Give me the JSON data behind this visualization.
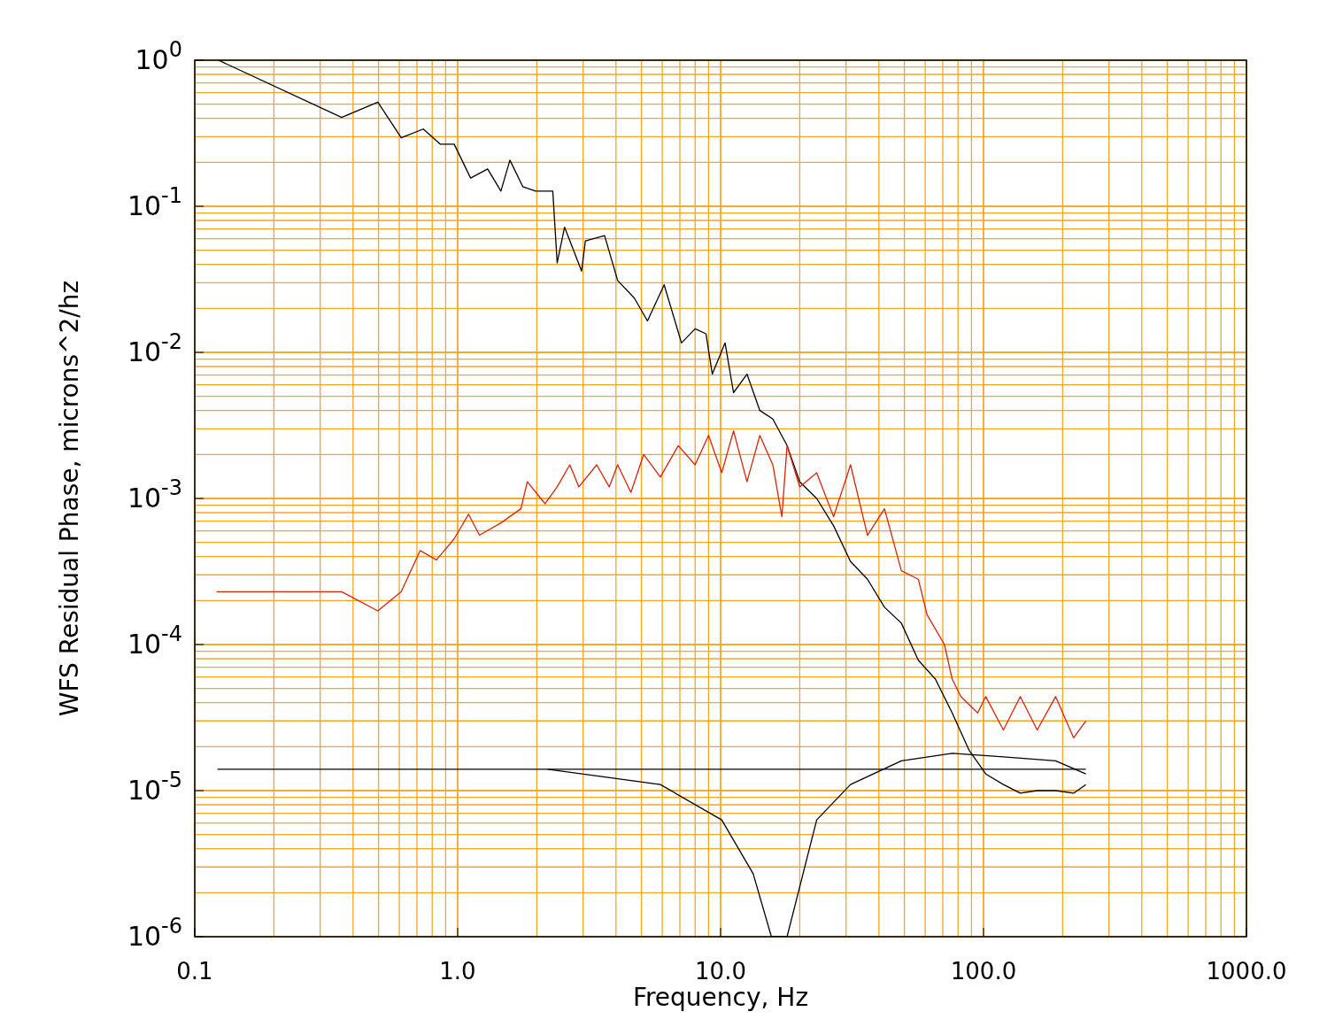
{
  "chart_data": {
    "type": "line",
    "xlabel": "Frequency, Hz",
    "ylabel": "WFS Residual Phase, microns^2/hz",
    "log": "xy",
    "grid": true,
    "xlim": [
      0.1,
      1000
    ],
    "xticks": [
      0.1,
      {
        "value": 1,
        "label": "1.0"
      },
      {
        "value": 10,
        "label": "10.0"
      },
      {
        "value": 100,
        "label": "100.0"
      },
      {
        "value": 1000,
        "label": "1000.0"
      }
    ],
    "ylim": [
      1e-06,
      1
    ],
    "yticks": [
      {
        "value": 1,
        "label": "10$^{0}$"
      },
      {
        "value": 0.1,
        "label": "10$^{-1}$"
      },
      {
        "value": 0.01,
        "label": "10$^{-2}$"
      },
      {
        "value": 0.001,
        "label": "10$^{-3}$"
      },
      {
        "value": 0.0001,
        "label": "10$^{-4}$"
      },
      {
        "value": 1e-05,
        "label": "10$^{-5}$"
      },
      {
        "value": 1e-06,
        "label": "10$^{-6}$"
      }
    ],
    "series": [
      {
        "color": "#000000",
        "x": [
          0.123,
          0.362,
          0.497,
          0.61,
          0.74,
          0.86,
          0.97,
          1.12,
          1.3,
          1.46,
          1.58,
          1.77,
          1.98,
          2.3,
          2.39,
          2.55,
          2.96,
          3.06,
          3.62,
          4.06,
          4.7,
          5.27,
          6.1,
          7.1,
          8.0,
          8.8,
          9.3,
          10.4,
          11.2,
          12.6,
          14.1,
          15.8,
          17.9,
          20,
          23.2,
          26.9,
          31.2,
          36.2,
          42,
          48.7,
          56.5,
          65.6,
          76,
          88,
          102,
          119,
          138,
          160,
          188,
          220,
          245
        ],
        "values": [
          1,
          0.406,
          0.516,
          0.294,
          0.338,
          0.266,
          0.266,
          0.156,
          0.18,
          0.127,
          0.207,
          0.136,
          0.127,
          0.127,
          0.041,
          0.072,
          0.036,
          0.058,
          0.063,
          0.031,
          0.0235,
          0.0164,
          0.029,
          0.0116,
          0.0145,
          0.0134,
          0.0071,
          0.0116,
          0.0053,
          0.0071,
          0.004,
          0.0035,
          0.0023,
          0.0013,
          0.001,
          0.00065,
          0.00037,
          0.00028,
          0.00018,
          0.00014,
          7.8e-05,
          5.8e-05,
          3.4e-05,
          1.9e-05,
          1.3e-05,
          1.1e-05,
          9.6e-06,
          1e-05,
          1e-05,
          9.6e-06,
          1.1e-05
        ]
      },
      {
        "color": "#dd2200",
        "x": [
          0.121,
          0.362,
          0.497,
          0.61,
          0.72,
          0.83,
          0.97,
          1.1,
          1.21,
          1.46,
          1.74,
          1.84,
          2.15,
          2.39,
          2.67,
          2.89,
          3.38,
          3.77,
          4.06,
          4.56,
          5.1,
          5.9,
          6.9,
          8.0,
          9.0,
          10.1,
          11.2,
          12.6,
          14.1,
          15.8,
          17.1,
          17.9,
          20,
          23.2,
          26.9,
          31.2,
          36.2,
          42,
          48.7,
          56.5,
          61,
          71,
          76,
          82,
          95,
          102,
          119,
          138,
          160,
          188,
          220,
          245
        ],
        "values": [
          0.00023,
          0.00023,
          0.00017,
          0.00023,
          0.00044,
          0.00038,
          0.00053,
          0.00078,
          0.00056,
          0.00068,
          0.00085,
          0.0013,
          0.00092,
          0.0012,
          0.0017,
          0.0012,
          0.0017,
          0.0012,
          0.0017,
          0.0011,
          0.002,
          0.0014,
          0.0023,
          0.0017,
          0.0027,
          0.0015,
          0.0029,
          0.0013,
          0.0027,
          0.0017,
          0.00075,
          0.0023,
          0.0012,
          0.0015,
          0.00075,
          0.0017,
          0.00056,
          0.00085,
          0.00032,
          0.00028,
          0.00016,
          0.0001,
          5.8e-05,
          4.4e-05,
          3.4e-05,
          4.4e-05,
          2.6e-05,
          4.4e-05,
          2.6e-05,
          4.4e-05,
          2.3e-05,
          3e-05
        ]
      },
      {
        "color": "#000000",
        "x": [
          0.122,
          245
        ],
        "values": [
          1.4e-05,
          1.4e-05
        ]
      },
      {
        "color": "#000000",
        "x": [
          2.2,
          5.9,
          10.1,
          13.3,
          15.6,
          17.9,
          23.2,
          31.2,
          48.7,
          76,
          119,
          188,
          245
        ],
        "values": [
          1.4e-05,
          1.1e-05,
          6.3e-06,
          2.7e-06,
          1e-06,
          1e-06,
          6.3e-06,
          1.1e-05,
          1.6e-05,
          1.8e-05,
          1.7e-05,
          1.6e-05,
          1.3e-05
        ]
      }
    ]
  }
}
